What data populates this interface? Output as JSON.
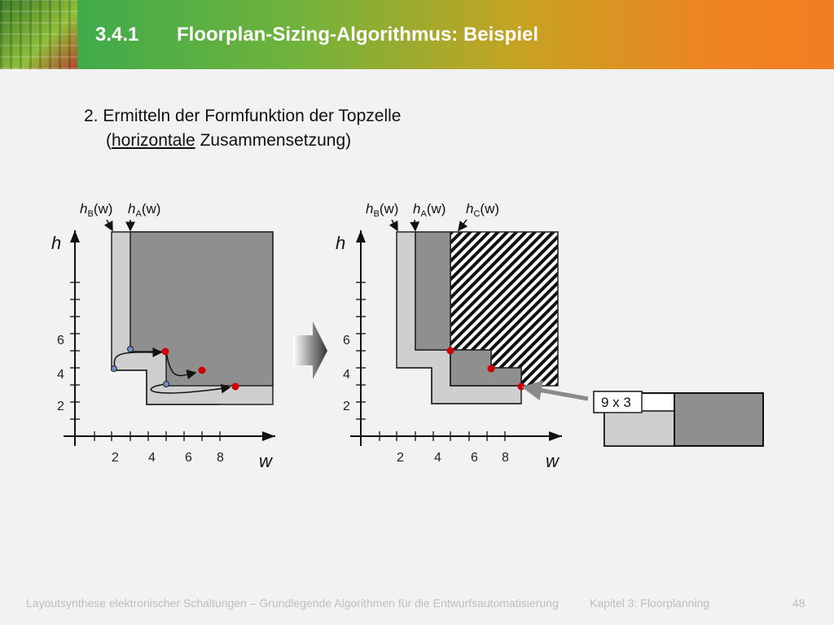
{
  "header": {
    "section_number": "3.4.1",
    "title": "Floorplan-Sizing-Algorithmus: Beispiel"
  },
  "content": {
    "step_line1": "2. Ermitteln der Formfunktion der Topzelle",
    "step_open_paren": "(",
    "step_underlined": "horizontale",
    "step_rest": " Zusammensetzung)"
  },
  "diagram": {
    "left_labels": {
      "hB": "h",
      "hB_sub": "B",
      "hA": "h",
      "hA_sub": "A",
      "arg": "(w)"
    },
    "right_labels": {
      "hC": "h",
      "hC_sub": "C"
    },
    "axis_y_label": "h",
    "axis_x_label": "w",
    "y_ticks": [
      "2",
      "4",
      "6"
    ],
    "x_ticks": [
      "2",
      "4",
      "6",
      "8"
    ],
    "callout": "9 x 3"
  },
  "colors": {
    "light_gray": "#cfcfcf",
    "dark_gray": "#8f8f8f",
    "red_dot": "#cc0000",
    "blue_dot": "#6f8ec4"
  },
  "footer": {
    "course": "Layoutsynthese elektronischer Schaltungen – Grundlegende Algorithmen für die Entwurfsautomatisierung",
    "chapter": "Kapitel 3: Floorplanning",
    "page": "48"
  }
}
